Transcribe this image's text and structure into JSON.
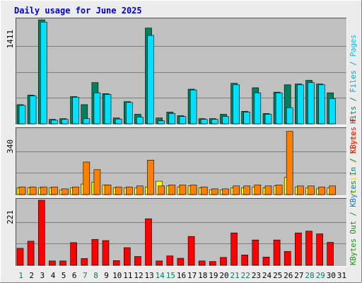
{
  "chart_data": {
    "type": "bar",
    "title": "Daily usage for June 2025",
    "categories": [
      "1",
      "2",
      "3",
      "4",
      "5",
      "6",
      "7",
      "8",
      "9",
      "10",
      "11",
      "12",
      "13",
      "14",
      "15",
      "16",
      "17",
      "18",
      "19",
      "20",
      "21",
      "22",
      "23",
      "24",
      "25",
      "26",
      "27",
      "28",
      "29",
      "30",
      "31"
    ],
    "weekend_days": [
      "1",
      "7",
      "8",
      "14",
      "15",
      "21",
      "22",
      "28",
      "29"
    ],
    "colors": {
      "background": "#c0c0c0",
      "frame": "#ececec",
      "title": "#0000cc",
      "grid": "#808080",
      "weekday_label": "#000000",
      "weekend_label": "#00805c",
      "hits": "#00805c",
      "files": "#00e0ff",
      "pages": "#00c0ff",
      "visits": "#ffff00",
      "sites": "#ff8000",
      "kbin": "#0080c0",
      "kbout": "#00a000",
      "kbf": "#ff0000",
      "kbf_legend_slash": "#ff0000"
    },
    "panels": [
      {
        "max_label": "1411",
        "ylim": [
          0,
          1411
        ],
        "legend": [
          {
            "text": "Hits",
            "color": "#00805c"
          },
          {
            "text": "/",
            "color": "#00805c"
          },
          {
            "text": "Files",
            "color": "#00a0e0"
          },
          {
            "text": "/",
            "color": "#00a0e0"
          },
          {
            "text": "Pages",
            "color": "#00c0ff"
          }
        ],
        "series": [
          {
            "name": "Hits",
            "color": "#00805c",
            "values": [
              260,
              390,
              1411,
              60,
              70,
              370,
              260,
              560,
              410,
              80,
              300,
              130,
              1300,
              80,
              160,
              110,
              470,
              70,
              70,
              130,
              550,
              170,
              490,
              140,
              430,
              530,
              540,
              590,
              540,
              420,
              0
            ]
          },
          {
            "name": "Files",
            "color": "#00e0ff",
            "values": [
              250,
              380,
              1380,
              50,
              60,
              360,
              70,
              420,
              400,
              65,
              290,
              90,
              1200,
              40,
              140,
              100,
              460,
              60,
              60,
              100,
              530,
              160,
              420,
              130,
              420,
              220,
              530,
              560,
              530,
              340,
              0
            ]
          }
        ]
      },
      {
        "max_label": "340",
        "ylim": [
          0,
          340
        ],
        "legend": [
          {
            "text": "Visits",
            "color": "#e0e000"
          },
          {
            "text": "/",
            "color": "#e0e000"
          },
          {
            "text": "Sites",
            "color": "#ff8000"
          }
        ],
        "series": [
          {
            "name": "Visits",
            "color": "#ffff00",
            "values": [
              35,
              35,
              35,
              35,
              25,
              35,
              55,
              65,
              50,
              35,
              35,
              35,
              40,
              70,
              45,
              40,
              45,
              35,
              25,
              25,
              35,
              35,
              40,
              35,
              45,
              90,
              40,
              35,
              30,
              35,
              0
            ]
          },
          {
            "name": "Sites",
            "color": "#ff8000",
            "values": [
              40,
              40,
              40,
              40,
              30,
              40,
              170,
              130,
              50,
              40,
              40,
              45,
              180,
              45,
              50,
              50,
              50,
              40,
              30,
              30,
              45,
              45,
              50,
              45,
              50,
              330,
              45,
              45,
              40,
              45,
              0
            ]
          }
        ]
      },
      {
        "max_label": "221",
        "ylim": [
          0,
          221
        ],
        "legend": [
          {
            "text": "KBytes",
            "color": "#00a000"
          },
          {
            "text": "Out",
            "color": "#00a000"
          },
          {
            "text": "/",
            "color": "#00a000"
          },
          {
            "text": "KBytes",
            "color": "#0080c0"
          },
          {
            "text": "In",
            "color": "#0080c0"
          },
          {
            "text": "/",
            "color": "#0080c0"
          },
          {
            "text": "KBytes",
            "color": "#ff0000"
          },
          {
            "text": "F",
            "color": "#ff0000"
          }
        ],
        "series": [
          {
            "name": "KBytes F",
            "color": "#ff0000",
            "values": [
              58,
              82,
              221,
              15,
              15,
              77,
              23,
              88,
              84,
              16,
              60,
              30,
              158,
              15,
              32,
              24,
              98,
              15,
              13,
              27,
              110,
              35,
              86,
              28,
              86,
              47,
              110,
              116,
              107,
              78,
              0
            ]
          }
        ]
      }
    ]
  }
}
